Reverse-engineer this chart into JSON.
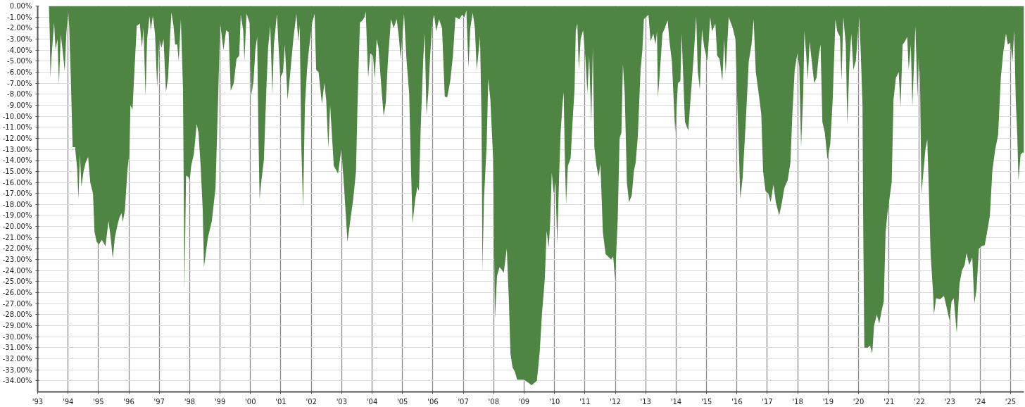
{
  "chart_data": {
    "type": "area",
    "color": "#4e8542",
    "grid": true,
    "xlim": [
      1993,
      2025.44
    ],
    "ylim": [
      -35,
      0
    ],
    "xticks": [
      {
        "value": 1993,
        "label": "'93"
      },
      {
        "value": 1994,
        "label": "'94"
      },
      {
        "value": 1995,
        "label": "'95"
      },
      {
        "value": 1996,
        "label": "'96"
      },
      {
        "value": 1997,
        "label": "'97"
      },
      {
        "value": 1998,
        "label": "'98"
      },
      {
        "value": 1999,
        "label": "'99"
      },
      {
        "value": 2000,
        "label": "'00"
      },
      {
        "value": 2001,
        "label": "'01"
      },
      {
        "value": 2002,
        "label": "'02"
      },
      {
        "value": 2003,
        "label": "'03"
      },
      {
        "value": 2004,
        "label": "'04"
      },
      {
        "value": 2005,
        "label": "'05"
      },
      {
        "value": 2006,
        "label": "'06"
      },
      {
        "value": 2007,
        "label": "'07"
      },
      {
        "value": 2008,
        "label": "'08"
      },
      {
        "value": 2009,
        "label": "'09"
      },
      {
        "value": 2010,
        "label": "'10"
      },
      {
        "value": 2011,
        "label": "'11"
      },
      {
        "value": 2012,
        "label": "'12"
      },
      {
        "value": 2013,
        "label": "'13"
      },
      {
        "value": 2014,
        "label": "'14"
      },
      {
        "value": 2015,
        "label": "'15"
      },
      {
        "value": 2016,
        "label": "'16"
      },
      {
        "value": 2017,
        "label": "'17"
      },
      {
        "value": 2018,
        "label": "'18"
      },
      {
        "value": 2019,
        "label": "'19"
      },
      {
        "value": 2020,
        "label": "'20"
      },
      {
        "value": 2021,
        "label": "'21"
      },
      {
        "value": 2022,
        "label": "'22"
      },
      {
        "value": 2023,
        "label": "'23"
      },
      {
        "value": 2024,
        "label": "'24"
      },
      {
        "value": 2025,
        "label": "'25"
      }
    ],
    "yticks": [
      {
        "value": 0,
        "label": "0.00%"
      },
      {
        "value": -1,
        "label": "-1.00%"
      },
      {
        "value": -2,
        "label": "-2.00%"
      },
      {
        "value": -3,
        "label": "-3.00%"
      },
      {
        "value": -4,
        "label": "-4.00%"
      },
      {
        "value": -5,
        "label": "-5.00%"
      },
      {
        "value": -6,
        "label": "-6.00%"
      },
      {
        "value": -7,
        "label": "-7.00%"
      },
      {
        "value": -8,
        "label": "-8.00%"
      },
      {
        "value": -9,
        "label": "-9.00%"
      },
      {
        "value": -10,
        "label": "-10.00%"
      },
      {
        "value": -11,
        "label": "-11.00%"
      },
      {
        "value": -12,
        "label": "-12.00%"
      },
      {
        "value": -13,
        "label": "-13.00%"
      },
      {
        "value": -14,
        "label": "-14.00%"
      },
      {
        "value": -15,
        "label": "-15.00%"
      },
      {
        "value": -16,
        "label": "-16.00%"
      },
      {
        "value": -17,
        "label": "-17.00%"
      },
      {
        "value": -18,
        "label": "-18.00%"
      },
      {
        "value": -19,
        "label": "-19.00%"
      },
      {
        "value": -20,
        "label": "-20.00%"
      },
      {
        "value": -21,
        "label": "-21.00%"
      },
      {
        "value": -22,
        "label": "-22.00%"
      },
      {
        "value": -23,
        "label": "-23.00%"
      },
      {
        "value": -24,
        "label": "-24.00%"
      },
      {
        "value": -25,
        "label": "-25.00%"
      },
      {
        "value": -26,
        "label": "-26.00%"
      },
      {
        "value": -27,
        "label": "-27.00%"
      },
      {
        "value": -28,
        "label": "-28.00%"
      },
      {
        "value": -29,
        "label": "-29.00%"
      },
      {
        "value": -30,
        "label": "-30.00%"
      },
      {
        "value": -31,
        "label": "-31.00%"
      },
      {
        "value": -32,
        "label": "-32.00%"
      },
      {
        "value": -33,
        "label": "-33.00%"
      },
      {
        "value": -34,
        "label": "-34.00%"
      }
    ],
    "x": [
      1993.37,
      1993.4,
      1993.42,
      1993.46,
      1993.54,
      1993.59,
      1993.65,
      1993.7,
      1993.76,
      1993.82,
      1993.89,
      1993.94,
      1994.0,
      1994.04,
      1994.09,
      1994.15,
      1994.23,
      1994.3,
      1994.34,
      1994.39,
      1994.44,
      1994.51,
      1994.58,
      1994.66,
      1994.73,
      1994.82,
      1994.87,
      1994.94,
      1995.02,
      1995.11,
      1995.23,
      1995.33,
      1995.4,
      1995.47,
      1995.54,
      1995.63,
      1995.69,
      1995.76,
      1995.8,
      1995.87,
      1995.95,
      1996.02,
      1996.05,
      1996.12,
      1996.19,
      1996.26,
      1996.36,
      1996.43,
      1996.48,
      1996.55,
      1996.6,
      1996.68,
      1996.72,
      1996.79,
      1996.86,
      1996.93,
      1997.0,
      1997.07,
      1997.14,
      1997.22,
      1997.29,
      1997.36,
      1997.4,
      1997.47,
      1997.52,
      1997.59,
      1997.64,
      1997.71,
      1997.78,
      1997.83,
      1997.88,
      1997.95,
      1998.0,
      1998.05,
      1998.14,
      1998.23,
      1998.29,
      1998.36,
      1998.43,
      1998.47,
      1998.6,
      1998.73,
      1998.85,
      1998.94,
      1999.0,
      1999.11,
      1999.2,
      1999.28,
      1999.35,
      1999.45,
      1999.54,
      1999.63,
      1999.68,
      1999.76,
      1999.8,
      1999.87,
      1999.97,
      2000.03,
      2000.1,
      2000.16,
      2000.22,
      2000.26,
      2000.3,
      2000.36,
      2000.44,
      2000.53,
      2000.58,
      2000.65,
      2000.72,
      2000.77,
      2000.87,
      2000.91,
      2000.98,
      2001.07,
      2001.13,
      2001.22,
      2001.3,
      2001.41,
      2001.51,
      2001.57,
      2001.62,
      2001.67,
      2001.73,
      2001.79,
      2001.86,
      2001.92,
      2002.03,
      2002.11,
      2002.16,
      2002.24,
      2002.35,
      2002.43,
      2002.49,
      2002.56,
      2002.62,
      2002.74,
      2002.88,
      2002.99,
      2003.08,
      2003.19,
      2003.29,
      2003.38,
      2003.47,
      2003.52,
      2003.6,
      2003.69,
      2003.75,
      2003.79,
      2003.87,
      2003.94,
      2004.03,
      2004.09,
      2004.15,
      2004.21,
      2004.3,
      2004.38,
      2004.45,
      2004.52,
      2004.62,
      2004.71,
      2004.81,
      2004.88,
      2004.94,
      2005.05,
      2005.13,
      2005.22,
      2005.28,
      2005.33,
      2005.42,
      2005.49,
      2005.54,
      2005.6,
      2005.68,
      2005.73,
      2005.79,
      2005.85,
      2005.91,
      2005.98,
      2006.04,
      2006.11,
      2006.2,
      2006.3,
      2006.39,
      2006.47,
      2006.57,
      2006.66,
      2006.74,
      2006.87,
      2006.96,
      2007.04,
      2007.1,
      2007.17,
      2007.23,
      2007.31,
      2007.38,
      2007.44,
      2007.49,
      2007.55,
      2007.6,
      2007.63,
      2007.68,
      2007.77,
      2007.82,
      2007.89,
      2007.98,
      2008.04,
      2008.11,
      2008.19,
      2008.26,
      2008.33,
      2008.43,
      2008.5,
      2008.55,
      2008.62,
      2008.7,
      2008.77,
      2009.0,
      2009.25,
      2009.42,
      2009.51,
      2009.59,
      2009.68,
      2009.74,
      2009.81,
      2009.86,
      2009.91,
      2009.97,
      2010.03,
      2010.09,
      2010.15,
      2010.2,
      2010.26,
      2010.3,
      2010.34,
      2010.38,
      2010.44,
      2010.53,
      2010.6,
      2010.66,
      2010.7,
      2010.75,
      2010.8,
      2010.86,
      2010.94,
      2011.02,
      2011.08,
      2011.14,
      2011.21,
      2011.26,
      2011.31,
      2011.38,
      2011.45,
      2011.51,
      2011.59,
      2011.68,
      2011.79,
      2011.86,
      2011.93,
      2011.99,
      2012.08,
      2012.14,
      2012.2,
      2012.25,
      2012.31,
      2012.38,
      2012.45,
      2012.54,
      2012.61,
      2012.67,
      2012.74,
      2012.83,
      2012.89,
      2012.94,
      2013.01,
      2013.09,
      2013.16,
      2013.25,
      2013.32,
      2013.37,
      2013.4,
      2013.46,
      2013.55,
      2013.63,
      2013.72,
      2013.78,
      2013.86,
      2013.97,
      2014.06,
      2014.14,
      2014.18,
      2014.29,
      2014.4,
      2014.48,
      2014.58,
      2014.66,
      2014.71,
      2014.78,
      2014.85,
      2014.92,
      2015.03,
      2015.12,
      2015.18,
      2015.29,
      2015.35,
      2015.43,
      2015.52,
      2015.58,
      2015.63,
      2015.73,
      2015.86,
      2015.95,
      2016.02,
      2016.07,
      2016.11,
      2016.19,
      2016.28,
      2016.39,
      2016.48,
      2016.55,
      2016.62,
      2016.71,
      2016.8,
      2016.86,
      2016.94,
      2017.03,
      2017.11,
      2017.2,
      2017.28,
      2017.39,
      2017.48,
      2017.56,
      2017.67,
      2017.76,
      2017.82,
      2017.9,
      2017.99,
      2018.05,
      2018.11,
      2018.18,
      2018.22,
      2018.28,
      2018.33,
      2018.39,
      2018.46,
      2018.54,
      2018.62,
      2018.69,
      2018.75,
      2018.81,
      2018.89,
      2018.98,
      2019.07,
      2019.15,
      2019.24,
      2019.3,
      2019.39,
      2019.44,
      2019.5,
      2019.58,
      2019.63,
      2019.7,
      2019.76,
      2019.83,
      2019.91,
      2020.02,
      2020.07,
      2020.13,
      2020.15,
      2020.19,
      2020.3,
      2020.38,
      2020.45,
      2020.51,
      2020.6,
      2020.68,
      2020.77,
      2020.83,
      2020.89,
      2020.95,
      2021.02,
      2021.09,
      2021.15,
      2021.23,
      2021.32,
      2021.38,
      2021.45,
      2021.53,
      2021.6,
      2021.65,
      2021.72,
      2021.77,
      2021.87,
      2021.94,
      2021.98,
      2022.02,
      2022.07,
      2022.14,
      2022.2,
      2022.26,
      2022.31,
      2022.37,
      2022.45,
      2022.48,
      2022.55,
      2022.68,
      2022.81,
      2022.91,
      2022.99,
      2023.06,
      2023.13,
      2023.23,
      2023.32,
      2023.4,
      2023.49,
      2023.55,
      2023.64,
      2023.74,
      2023.81,
      2023.88,
      2023.96,
      2024.04,
      2024.15,
      2024.26,
      2024.32,
      2024.4,
      2024.49,
      2024.59,
      2024.68,
      2024.76,
      2024.85,
      2024.91,
      2025.0,
      2025.06,
      2025.12,
      2025.17,
      2025.22,
      2025.26,
      2025.33,
      2025.39,
      2025.44
    ],
    "values": [
      0,
      -2.8,
      -6.5,
      -4.5,
      -1.5,
      -4.0,
      -3.0,
      -7.1,
      -2.6,
      -4.0,
      -5.9,
      -2.7,
      -0.3,
      -2.0,
      -6.5,
      -12.8,
      -12.8,
      -14.8,
      -17.5,
      -13.5,
      -16.4,
      -15.0,
      -14.2,
      -13.7,
      -16.0,
      -17.0,
      -20.5,
      -21.4,
      -21.6,
      -21.2,
      -21.8,
      -19.5,
      -21.0,
      -22.9,
      -21.0,
      -19.8,
      -19.2,
      -18.8,
      -19.6,
      -18.5,
      -15.0,
      -13.2,
      -9.0,
      -9.4,
      -5.5,
      -1.8,
      -1.6,
      -3.8,
      -2.0,
      -8.2,
      -3.0,
      -0.9,
      -2.2,
      -0.9,
      -2.5,
      -7.4,
      -3.0,
      -3.8,
      -3.0,
      -7.8,
      -6.5,
      -2.5,
      -0.6,
      -1.8,
      -3.5,
      -3.5,
      -5.0,
      -1.2,
      -7.5,
      -25.7,
      -15.4,
      -15.5,
      -15.8,
      -14.5,
      -13.4,
      -10.7,
      -11.5,
      -14.5,
      -18.5,
      -23.7,
      -21.0,
      -19.5,
      -16.5,
      -8.0,
      -1.5,
      -4.0,
      -2.2,
      -2.4,
      -7.7,
      -7.0,
      -4.8,
      -4.5,
      -0.8,
      -2.2,
      -5.0,
      -0.7,
      -1.5,
      -8.1,
      -6.8,
      -4.0,
      -2.8,
      -11.5,
      -17.5,
      -15.8,
      -14.0,
      -7.0,
      -3.8,
      -1.8,
      -8.0,
      -3.5,
      -0.7,
      -3.0,
      -6.5,
      -6.0,
      -3.5,
      -8.5,
      -6.3,
      -3.0,
      -0.7,
      -3.2,
      -1.8,
      -12.5,
      -18.3,
      -9.0,
      -5.8,
      -4.0,
      -1.5,
      -0.7,
      -5.8,
      -6.0,
      -8.9,
      -7.0,
      -8.5,
      -12.9,
      -9.0,
      -14.5,
      -15.2,
      -13.0,
      -16.5,
      -21.4,
      -19.3,
      -17.5,
      -15.0,
      -9.0,
      -1.5,
      -1.3,
      -1.0,
      -0.5,
      -6.5,
      -4.3,
      -4.5,
      -6.6,
      -3.0,
      -3.8,
      -7.2,
      -10.0,
      -8.8,
      -5.0,
      -1.2,
      -2.0,
      -1.2,
      -2.8,
      -4.8,
      -0.7,
      -4.8,
      -8.0,
      -14.8,
      -19.7,
      -17.5,
      -16.4,
      -16.8,
      -11.0,
      -5.0,
      -2.5,
      -9.9,
      -7.8,
      -4.5,
      -1.5,
      -0.8,
      -2.3,
      -1.2,
      -2.0,
      -8.2,
      -8.3,
      -6.8,
      -4.5,
      -1.0,
      -1.2,
      -0.8,
      -1.0,
      -0.4,
      -5.6,
      -2.0,
      -0.6,
      -2.0,
      -5.8,
      -4.5,
      -2.8,
      -10.5,
      -24.0,
      -17.5,
      -12.5,
      -6.6,
      -8.5,
      -13.8,
      -28.4,
      -24.5,
      -23.7,
      -23.9,
      -24.2,
      -22.0,
      -26.8,
      -31.5,
      -32.8,
      -33.2,
      -33.9,
      -33.9,
      -34.4,
      -34.0,
      -31.5,
      -27.8,
      -24.8,
      -20.4,
      -21.9,
      -19.5,
      -15.1,
      -17.0,
      -16.0,
      -21.6,
      -15.5,
      -11.5,
      -9.0,
      -7.8,
      -13.8,
      -18.0,
      -14.5,
      -13.8,
      -10.2,
      -7.5,
      -2.2,
      -1.6,
      -5.8,
      -3.0,
      -2.2,
      -4.8,
      -7.9,
      -4.5,
      -10.6,
      -3.8,
      -12.8,
      -14.5,
      -15.5,
      -14.3,
      -20.5,
      -22.5,
      -22.8,
      -23.0,
      -22.7,
      -24.8,
      -19.3,
      -12.0,
      -11.5,
      -5.3,
      -8.0,
      -16.0,
      -17.8,
      -17.2,
      -15.0,
      -14.2,
      -11.8,
      -5.8,
      -4.0,
      -1.2,
      -1.0,
      -0.8,
      -3.2,
      -2.5,
      -3.5,
      -2.3,
      -8.3,
      -6.2,
      -2.5,
      -2.0,
      -1.3,
      -3.2,
      -5.0,
      -11.5,
      -7.0,
      -6.8,
      -2.5,
      -10.5,
      -11.3,
      -8.2,
      -4.5,
      -0.9,
      -5.8,
      -7.6,
      -2.1,
      -3.7,
      -5.0,
      -1.0,
      -2.3,
      -1.6,
      -4.5,
      -4.8,
      -6.8,
      -3.0,
      -6.1,
      -1.0,
      -2.0,
      -3.0,
      -9.5,
      -13.7,
      -17.5,
      -15.5,
      -11.0,
      -5.0,
      -3.5,
      -1.2,
      -6.0,
      -7.8,
      -9.8,
      -15.0,
      -16.8,
      -17.0,
      -17.8,
      -16.2,
      -17.8,
      -19.0,
      -17.8,
      -16.5,
      -15.8,
      -14.2,
      -10.0,
      -5.8,
      -4.3,
      -5.5,
      -12.8,
      -8.0,
      -2.3,
      -4.5,
      -6.7,
      -3.2,
      -5.0,
      -7.0,
      -6.5,
      -4.5,
      -3.5,
      -10.5,
      -11.5,
      -13.9,
      -12.5,
      -8.5,
      -1.2,
      -2.3,
      -2.8,
      -6.8,
      -1.0,
      -3.5,
      -10.8,
      -5.2,
      -2.5,
      -5.8,
      -5.0,
      -1.0,
      -4.0,
      -9.0,
      -18.8,
      -31.0,
      -31.0,
      -30.8,
      -31.5,
      -29.0,
      -28.0,
      -28.8,
      -27.5,
      -26.8,
      -20.5,
      -18.8,
      -17.4,
      -16.0,
      -8.5,
      -6.5,
      -6.0,
      -9.2,
      -3.5,
      -3.2,
      -2.8,
      -5.8,
      -3.5,
      -9.2,
      -1.8,
      -8.3,
      -4.5,
      -6.5,
      -17.1,
      -14.8,
      -13.0,
      -12.1,
      -16.5,
      -22.5,
      -26.0,
      -28.0,
      -26.5,
      -26.6,
      -26.3,
      -27.5,
      -28.5,
      -26.8,
      -26.5,
      -29.7,
      -25.2,
      -24.0,
      -23.5,
      -22.4,
      -23.5,
      -22.8,
      -27.0,
      -25.7,
      -22.0,
      -21.8,
      -21.7,
      -20.0,
      -19.0,
      -15.0,
      -13.1,
      -11.7,
      -6.5,
      -4.2,
      -2.5,
      -3.5,
      -3.3,
      -5.1,
      -2.2,
      -8.5,
      -11.7,
      -15.8,
      -13.5,
      -13.3,
      -13.3
    ]
  }
}
